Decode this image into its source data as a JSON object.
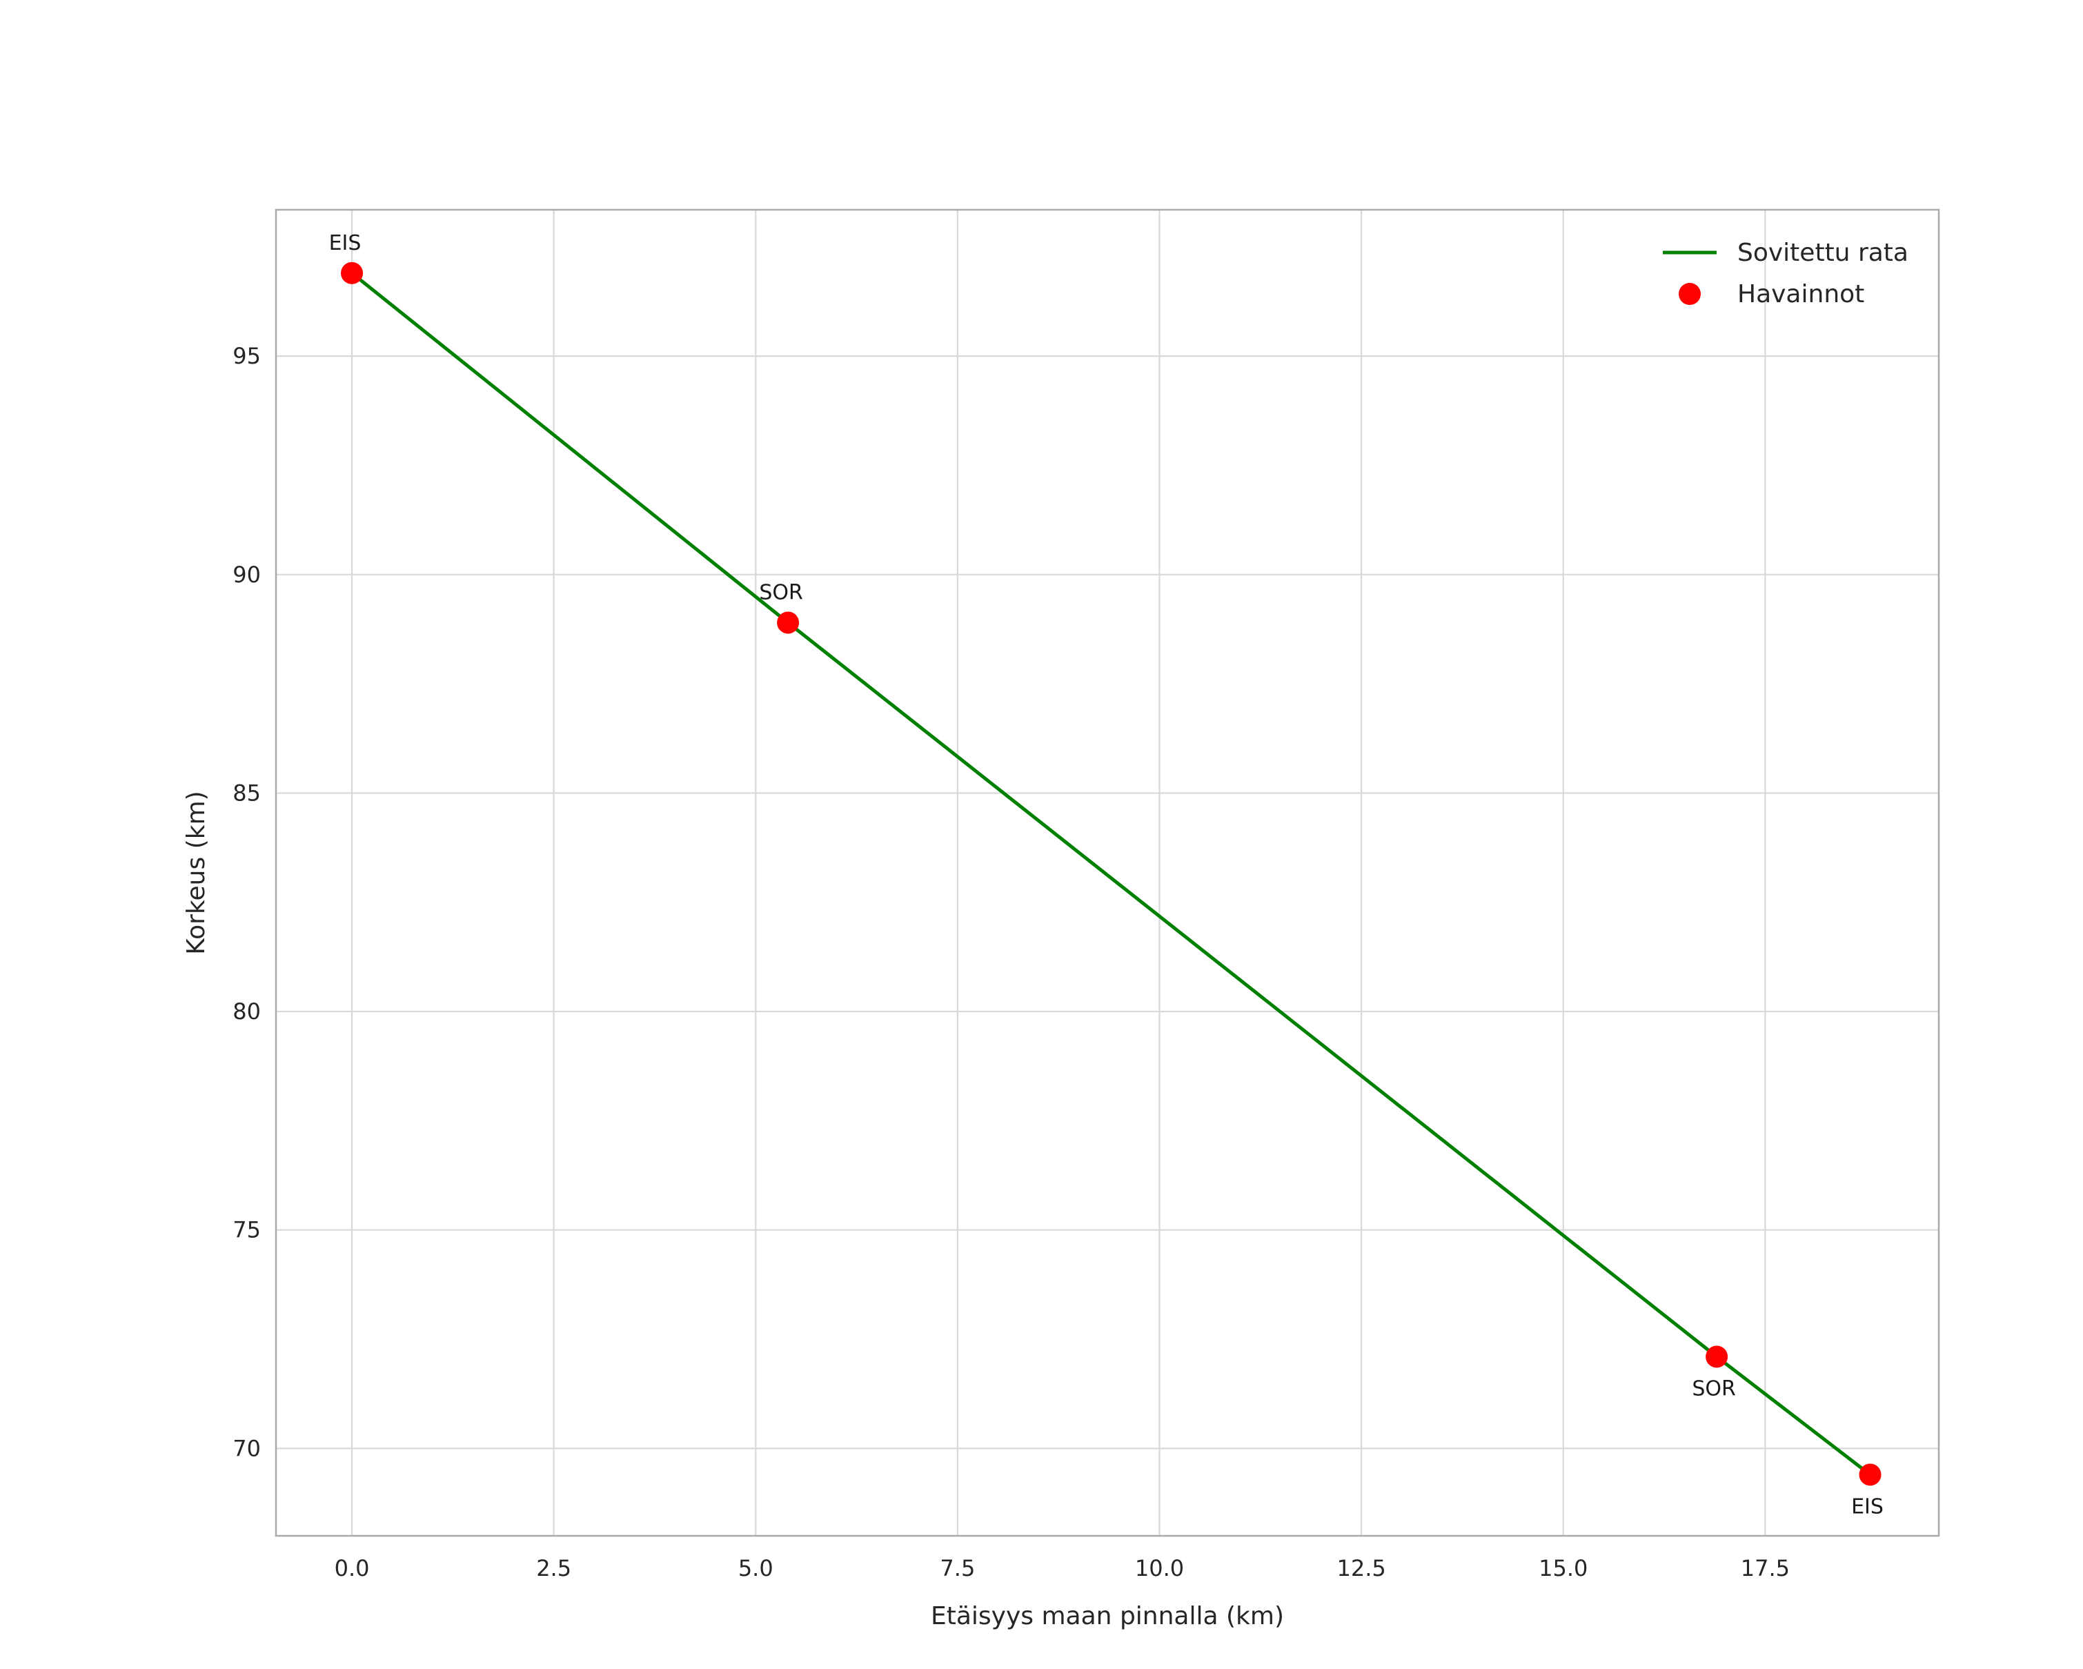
{
  "chart_data": {
    "type": "line+scatter",
    "title": "",
    "xlabel": "Etäisyys maan pinnalla (km)",
    "ylabel": "Korkeus (km)",
    "xlim": [
      -0.94,
      19.65
    ],
    "ylim": [
      68.0,
      98.35
    ],
    "grid": true,
    "xticks": [
      {
        "v": 0.0,
        "label": "0.0"
      },
      {
        "v": 2.5,
        "label": "2.5"
      },
      {
        "v": 5.0,
        "label": "5.0"
      },
      {
        "v": 7.5,
        "label": "7.5"
      },
      {
        "v": 10.0,
        "label": "10.0"
      },
      {
        "v": 12.5,
        "label": "12.5"
      },
      {
        "v": 15.0,
        "label": "15.0"
      },
      {
        "v": 17.5,
        "label": "17.5"
      }
    ],
    "yticks": [
      {
        "v": 70,
        "label": "70"
      },
      {
        "v": 75,
        "label": "75"
      },
      {
        "v": 80,
        "label": "80"
      },
      {
        "v": 85,
        "label": "85"
      },
      {
        "v": 90,
        "label": "90"
      },
      {
        "v": 95,
        "label": "95"
      }
    ],
    "colors": {
      "line": "#008000",
      "points": "#ff0000",
      "grid": "#d9d9d9",
      "spine": "#aaaaaa",
      "text": "#262626"
    },
    "line_series": {
      "name": "Sovitettu rata",
      "x": [
        0.0,
        5.4,
        16.9,
        18.8
      ],
      "y": [
        96.9,
        88.9,
        72.1,
        69.4
      ]
    },
    "scatter_series": {
      "name": "Havainnot",
      "points": [
        {
          "x": 0.0,
          "y": 96.9,
          "label": "EIS",
          "placement": "above"
        },
        {
          "x": 5.4,
          "y": 88.9,
          "label": "SOR",
          "placement": "above"
        },
        {
          "x": 16.9,
          "y": 72.1,
          "label": "SOR",
          "placement": "below"
        },
        {
          "x": 18.8,
          "y": 69.4,
          "label": "EIS",
          "placement": "below"
        }
      ]
    },
    "legend": {
      "position": "upper right",
      "items": [
        {
          "label": "Sovitettu rata",
          "marker": "line",
          "color": "#008000"
        },
        {
          "label": "Havainnot",
          "marker": "dot",
          "color": "#ff0000"
        }
      ]
    }
  }
}
